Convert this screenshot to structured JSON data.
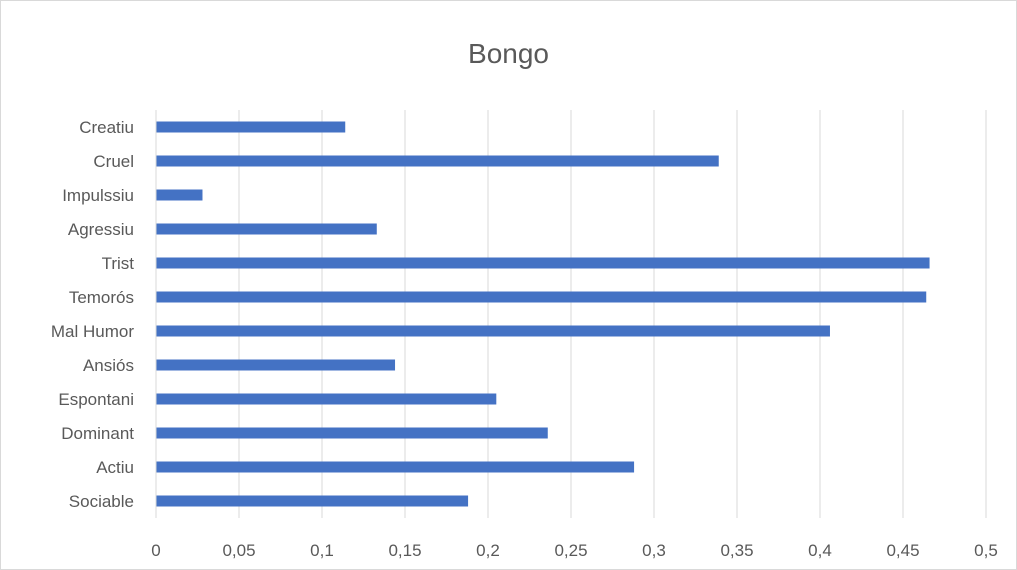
{
  "chart_data": {
    "type": "bar",
    "orientation": "horizontal",
    "title": "Bongo",
    "xlabel": "",
    "ylabel": "",
    "categories": [
      "Sociable",
      "Actiu",
      "Dominant",
      "Espontani",
      "Ansiós",
      "Mal Humor",
      "Temorós",
      "Trist",
      "Agressiu",
      "Impulssiu",
      "Cruel",
      "Creatiu"
    ],
    "values": [
      0.188,
      0.288,
      0.236,
      0.205,
      0.144,
      0.406,
      0.464,
      0.466,
      0.133,
      0.028,
      0.339,
      0.114
    ],
    "xlim": [
      0,
      0.5
    ],
    "xticks": [
      0,
      0.05,
      0.1,
      0.15,
      0.2,
      0.25,
      0.3,
      0.35,
      0.4,
      0.45,
      0.5
    ],
    "xtick_labels": [
      "0",
      "0,05",
      "0,1",
      "0,15",
      "0,2",
      "0,25",
      "0,3",
      "0,35",
      "0,4",
      "0,45",
      "0,5"
    ],
    "grid": true,
    "legend": "none",
    "bar_color": "#4472c4",
    "gridline_color": "#d9d9d9"
  }
}
